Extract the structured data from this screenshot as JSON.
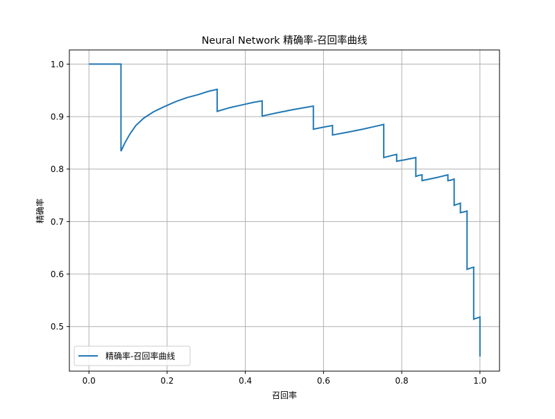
{
  "chart_data": {
    "type": "line",
    "title": "Neural Network 精确率-召回率曲线",
    "xlabel": "召回率",
    "ylabel": "精确率",
    "xlim": [
      -0.05,
      1.05
    ],
    "ylim": [
      0.415,
      1.027
    ],
    "xticks": [
      0.0,
      0.2,
      0.4,
      0.6,
      0.8,
      1.0
    ],
    "xtick_labels": [
      "0.0",
      "0.2",
      "0.4",
      "0.6",
      "0.8",
      "1.0"
    ],
    "yticks": [
      0.5,
      0.6,
      0.7,
      0.8,
      0.9,
      1.0
    ],
    "ytick_labels": [
      "0.5",
      "0.6",
      "0.7",
      "0.8",
      "0.9",
      "1.0"
    ],
    "grid": true,
    "legend": {
      "position": "lower-left",
      "entries": [
        "精确率-召回率曲线"
      ]
    },
    "series": [
      {
        "name": "精确率-召回率曲线",
        "color": "#1f77b4",
        "x": [
          0.0,
          0.082,
          0.082,
          0.092,
          0.105,
          0.12,
          0.14,
          0.165,
          0.19,
          0.22,
          0.25,
          0.28,
          0.305,
          0.328,
          0.328,
          0.36,
          0.39,
          0.42,
          0.443,
          0.443,
          0.48,
          0.52,
          0.55,
          0.574,
          0.574,
          0.6,
          0.623,
          0.623,
          0.66,
          0.7,
          0.73,
          0.754,
          0.754,
          0.77,
          0.787,
          0.787,
          0.81,
          0.836,
          0.836,
          0.844,
          0.852,
          0.852,
          0.89,
          0.918,
          0.918,
          0.926,
          0.934,
          0.934,
          0.942,
          0.95,
          0.95,
          0.957,
          0.967,
          0.967,
          0.975,
          0.984,
          0.984,
          0.992,
          1.0,
          1.0
        ],
        "y": [
          1.0,
          1.0,
          0.834,
          0.85,
          0.867,
          0.883,
          0.897,
          0.909,
          0.918,
          0.928,
          0.936,
          0.942,
          0.948,
          0.952,
          0.91,
          0.917,
          0.922,
          0.927,
          0.93,
          0.901,
          0.907,
          0.913,
          0.917,
          0.92,
          0.876,
          0.88,
          0.883,
          0.865,
          0.87,
          0.876,
          0.881,
          0.885,
          0.822,
          0.825,
          0.828,
          0.815,
          0.818,
          0.822,
          0.786,
          0.788,
          0.789,
          0.778,
          0.784,
          0.789,
          0.778,
          0.779,
          0.781,
          0.731,
          0.733,
          0.735,
          0.717,
          0.718,
          0.72,
          0.609,
          0.611,
          0.613,
          0.514,
          0.516,
          0.518,
          0.443
        ]
      }
    ]
  }
}
